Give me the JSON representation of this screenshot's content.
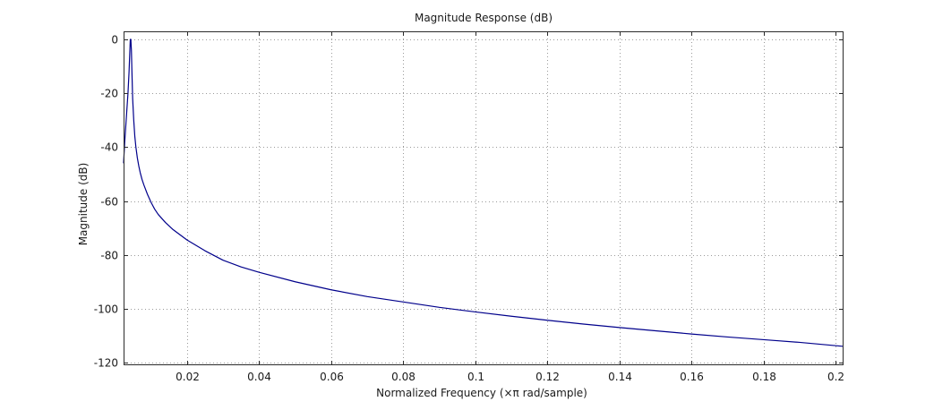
{
  "chart_data": {
    "type": "line",
    "title": "Magnitude Response (dB)",
    "xlabel": "Normalized Frequency (×π rad/sample)",
    "ylabel": "Magnitude (dB)",
    "xlim": [
      0.00238,
      0.2022
    ],
    "ylim": [
      -121,
      3
    ],
    "xticks": [
      0.02,
      0.04,
      0.06,
      0.08,
      0.1,
      0.12,
      0.14,
      0.16,
      0.18,
      0.2
    ],
    "xtick_labels": [
      "0.02",
      "0.04",
      "0.06",
      "0.08",
      "0.1",
      "0.12",
      "0.14",
      "0.16",
      "0.18",
      "0.2"
    ],
    "yticks": [
      0,
      -20,
      -40,
      -60,
      -80,
      -100,
      -120
    ],
    "ytick_labels": [
      "0",
      "-20",
      "-40",
      "-60",
      "-80",
      "-100",
      "-120"
    ],
    "grid": true,
    "line_color": "#00008b",
    "series": [
      {
        "x": [
          0.00238,
          0.0027,
          0.003,
          0.0033,
          0.0036,
          0.0039,
          0.0041,
          0.00425,
          0.0044,
          0.00455,
          0.0047,
          0.0049,
          0.0052,
          0.0055,
          0.0058,
          0.0062,
          0.0066,
          0.007,
          0.0075,
          0.008,
          0.009,
          0.01,
          0.011,
          0.012,
          0.013,
          0.014,
          0.016,
          0.018,
          0.02,
          0.025,
          0.03,
          0.035,
          0.04,
          0.05,
          0.06,
          0.07,
          0.08,
          0.09,
          0.1,
          0.11,
          0.12,
          0.13,
          0.14,
          0.15,
          0.16,
          0.17,
          0.18,
          0.19,
          0.2022
        ],
        "y": [
          -46,
          -38,
          -32,
          -26,
          -20,
          -12,
          -5,
          0,
          0,
          -4,
          -12,
          -22,
          -30,
          -36,
          -40,
          -44,
          -47,
          -49.5,
          -52,
          -54,
          -57.5,
          -60.5,
          -63,
          -65,
          -66.5,
          -68,
          -70.5,
          -72.5,
          -74.5,
          -78.5,
          -82,
          -84.5,
          -86.5,
          -90,
          -93,
          -95.5,
          -97.5,
          -99.5,
          -101.2,
          -102.8,
          -104.3,
          -105.7,
          -107,
          -108.2,
          -109.4,
          -110.5,
          -111.5,
          -112.5,
          -114
        ]
      }
    ]
  }
}
